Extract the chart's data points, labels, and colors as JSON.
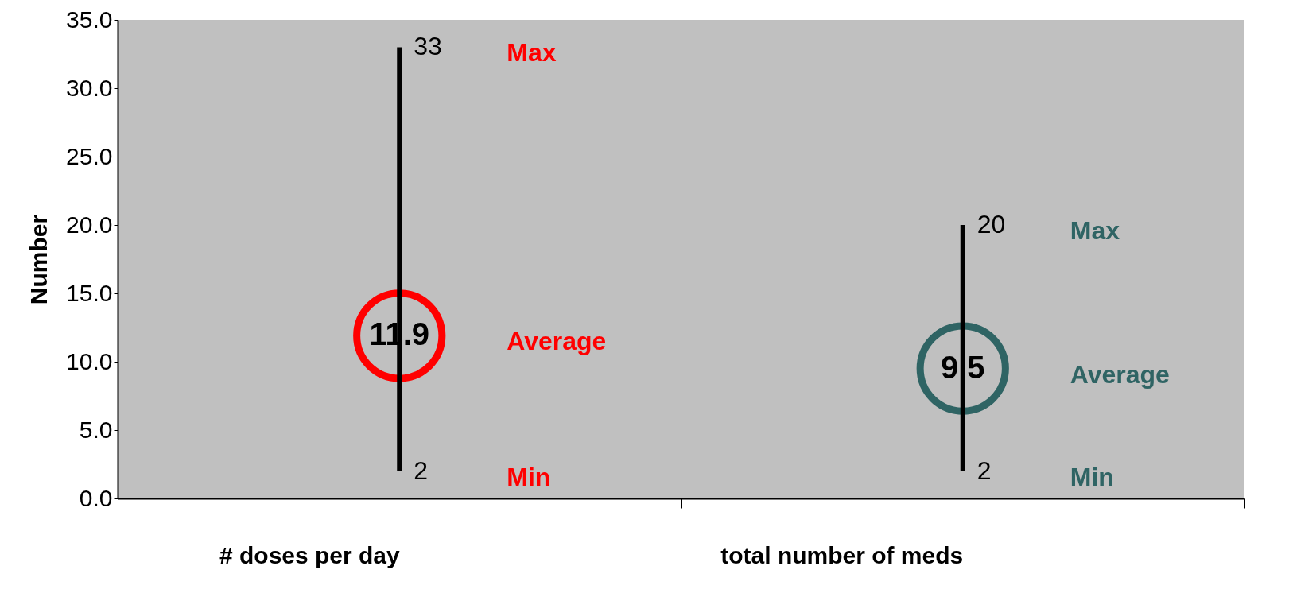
{
  "chart_data": {
    "type": "scatter",
    "ylabel": "Number",
    "categories": [
      "# doses per day",
      "total number of meds"
    ],
    "series": [
      {
        "type": "scatter",
        "values": [
          11.9,
          9.5
        ],
        "colors": [
          "#ff0000",
          "#2f6464"
        ],
        "errors": [
          [
            2,
            33
          ],
          [
            2,
            20
          ]
        ]
      }
    ],
    "marker": "circle",
    "data_labels": true,
    "ylim": [
      0,
      35
    ],
    "yticks": [
      {
        "value": 0,
        "label": "0.0"
      },
      {
        "value": 5,
        "label": "5.0"
      },
      {
        "value": 10,
        "label": "10.0"
      },
      {
        "value": 15,
        "label": "15.0"
      },
      {
        "value": 20,
        "label": "20.0"
      },
      {
        "value": 25,
        "label": "25.0"
      },
      {
        "value": 30,
        "label": "30.0"
      },
      {
        "value": 35,
        "label": "35.0"
      }
    ],
    "grid": false,
    "annotations": [
      "33",
      "2",
      "Max",
      "Min",
      "Average",
      "20",
      "2",
      "Max",
      "Min",
      "Average"
    ]
  }
}
